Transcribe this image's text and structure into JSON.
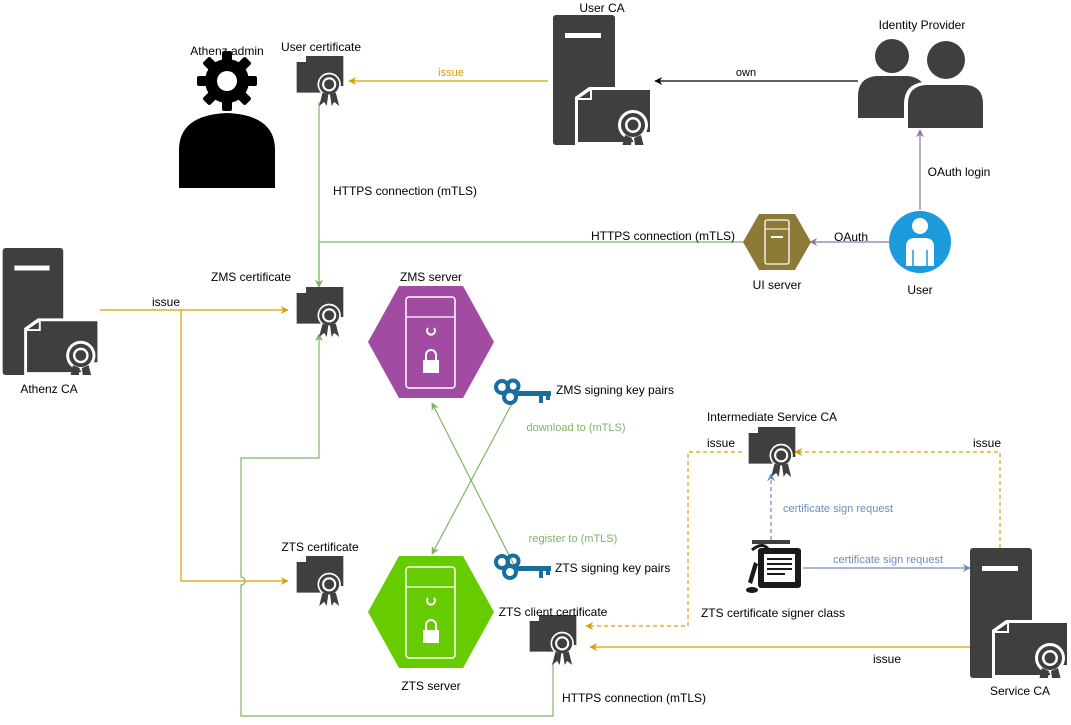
{
  "nodes": {
    "user_ca": "User CA",
    "identity_provider": "Identity Provider",
    "athenz_admin": "Athenz admin",
    "user_certificate": "User certificate",
    "athenz_ca": "Athenz CA",
    "zms_certificate": "ZMS certificate",
    "zms_server": "ZMS server",
    "ui_server": "UI server",
    "user": "User",
    "zms_signing_key_pairs": "ZMS signing key pairs",
    "intermediate_service_ca": "Intermediate Service CA",
    "zts_certificate": "ZTS certificate",
    "zts_signing_key_pairs": "ZTS signing key pairs",
    "zts_certificate_signer_class": "ZTS certificate signer class",
    "zts_client_certificate": "ZTS client certificate",
    "zts_server": "ZTS server",
    "service_ca": "Service CA"
  },
  "edges": {
    "issue_user_cert": "issue",
    "own": "own",
    "oauth_login": "OAuth login",
    "https_admin": "HTTPS connection (mTLS)",
    "https_ui": "HTTPS connection (mTLS)",
    "oauth": "OAuth",
    "issue_zms": "issue",
    "download_to": "download to (mTLS)",
    "issue_intermediate_left": "issue",
    "issue_intermediate_right": "issue",
    "cert_sign_request_up": "certificate sign request",
    "register_to": "register to (mTLS)",
    "cert_sign_request_right": "certificate sign request",
    "issue_client_cert": "issue",
    "https_client": "HTTPS connection (mTLS)"
  },
  "colors": {
    "orange": "#D6A000",
    "green": "#82B366",
    "purple": "#9673A6",
    "blue": "#6C8EBF",
    "dark": "#3f3f3f",
    "zms_fill": "#A24BA2",
    "zts_fill": "#66CC00",
    "ui_fill": "#8C7A36",
    "user_fill": "#1B9BDB",
    "key_blue": "#1A6E9E"
  }
}
